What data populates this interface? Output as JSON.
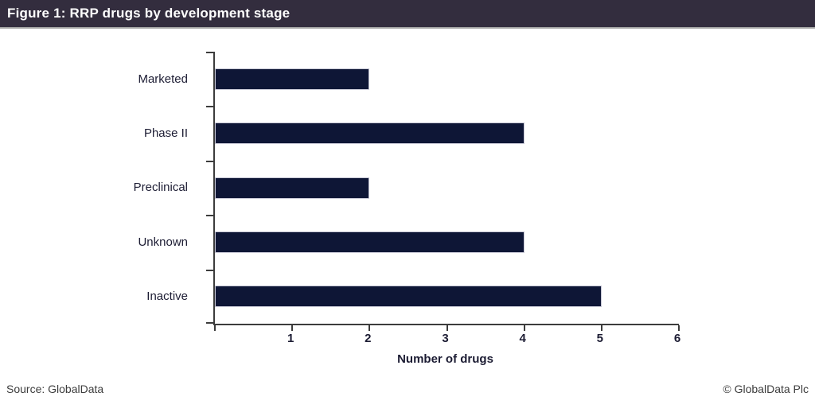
{
  "header": {
    "title": "Figure 1: RRP drugs by development stage",
    "bg_color": "#332d3e",
    "divider_color": "#a3a3a3",
    "text_color": "#ffffff"
  },
  "chart_data": {
    "type": "bar",
    "orientation": "horizontal",
    "title": "Figure 1: RRP drugs by development stage",
    "categories": [
      "Marketed",
      "Phase II",
      "Preclinical",
      "Unknown",
      "Inactive"
    ],
    "values": [
      2,
      4,
      2,
      4,
      5
    ],
    "xlabel": "Number of drugs",
    "ylabel": "",
    "xlim": [
      0,
      6
    ],
    "xticks": [
      1,
      2,
      3,
      4,
      5,
      6
    ],
    "grid": false,
    "legend": "none",
    "bar_color": "#0e1636",
    "bar_border_color": "#c6c6d4",
    "axis_color": "#3c3c3c",
    "label_color": "#1c1c33"
  },
  "footer": {
    "source": "Source: GlobalData",
    "copyright": "© GlobalData Plc"
  }
}
